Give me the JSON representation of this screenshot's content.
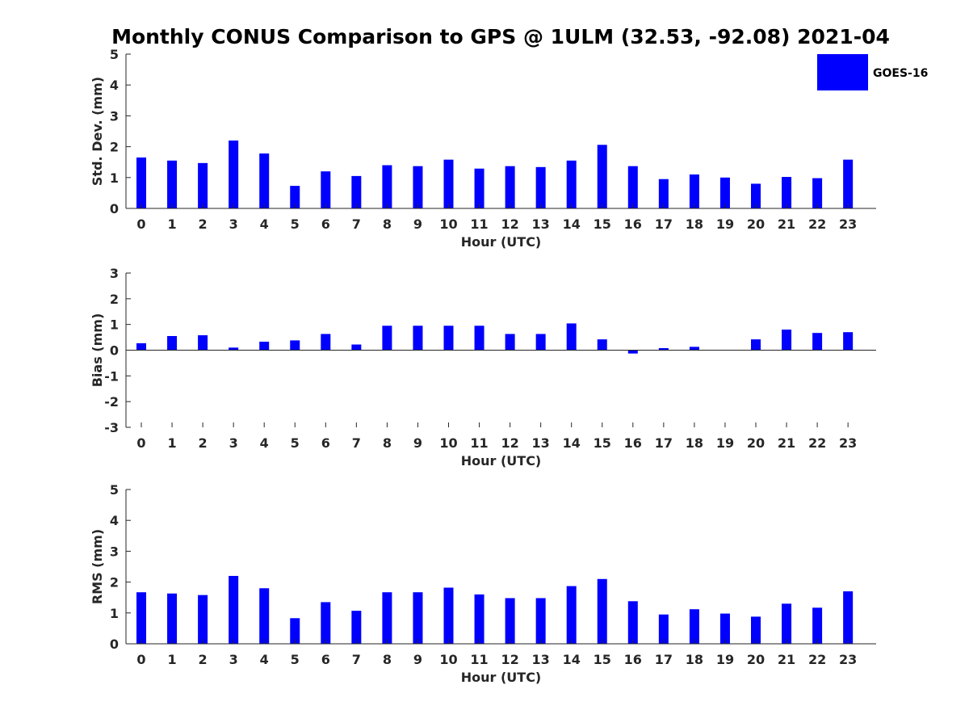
{
  "title": "Monthly CONUS Comparison to GPS @ 1ULM (32.53, -92.08) 2021-04",
  "legend": {
    "label": "GOES-16",
    "color": "#0000ff"
  },
  "chart_data": [
    {
      "type": "bar",
      "title": "",
      "xlabel": "Hour (UTC)",
      "ylabel": "Std. Dev. (mm)",
      "ylim": [
        0,
        5
      ],
      "yticks": [
        "0",
        "1",
        "2",
        "3",
        "4",
        "5"
      ],
      "categories": [
        "0",
        "1",
        "2",
        "3",
        "4",
        "5",
        "6",
        "7",
        "8",
        "9",
        "10",
        "11",
        "12",
        "13",
        "14",
        "15",
        "16",
        "17",
        "18",
        "19",
        "20",
        "21",
        "22",
        "23"
      ],
      "series": [
        {
          "name": "GOES-16",
          "values": [
            1.65,
            1.55,
            1.47,
            2.2,
            1.78,
            0.73,
            1.2,
            1.05,
            1.4,
            1.37,
            1.58,
            1.29,
            1.37,
            1.34,
            1.55,
            2.06,
            1.37,
            0.95,
            1.1,
            1.0,
            0.8,
            1.02,
            0.98,
            1.58
          ]
        }
      ],
      "grid": false,
      "legend": "top-right"
    },
    {
      "type": "bar",
      "title": "",
      "xlabel": "Hour (UTC)",
      "ylabel": "Bias (mm)",
      "ylim": [
        -3,
        3
      ],
      "yticks": [
        "-3",
        "-2",
        "-1",
        "0",
        "1",
        "2",
        "3"
      ],
      "categories": [
        "0",
        "1",
        "2",
        "3",
        "4",
        "5",
        "6",
        "7",
        "8",
        "9",
        "10",
        "11",
        "12",
        "13",
        "14",
        "15",
        "16",
        "17",
        "18",
        "19",
        "20",
        "21",
        "22",
        "23"
      ],
      "series": [
        {
          "name": "GOES-16",
          "values": [
            0.27,
            0.55,
            0.58,
            0.1,
            0.33,
            0.38,
            0.63,
            0.22,
            0.95,
            0.95,
            0.95,
            0.95,
            0.63,
            0.63,
            1.04,
            0.42,
            -0.13,
            0.08,
            0.13,
            0.0,
            0.42,
            0.8,
            0.67,
            0.7
          ]
        }
      ],
      "grid": false
    },
    {
      "type": "bar",
      "title": "",
      "xlabel": "Hour (UTC)",
      "ylabel": "RMS (mm)",
      "ylim": [
        0,
        5
      ],
      "yticks": [
        "0",
        "1",
        "2",
        "3",
        "4",
        "5"
      ],
      "categories": [
        "0",
        "1",
        "2",
        "3",
        "4",
        "5",
        "6",
        "7",
        "8",
        "9",
        "10",
        "11",
        "12",
        "13",
        "14",
        "15",
        "16",
        "17",
        "18",
        "19",
        "20",
        "21",
        "22",
        "23"
      ],
      "series": [
        {
          "name": "GOES-16",
          "values": [
            1.67,
            1.63,
            1.58,
            2.2,
            1.8,
            0.83,
            1.35,
            1.07,
            1.67,
            1.67,
            1.82,
            1.6,
            1.48,
            1.48,
            1.87,
            2.1,
            1.38,
            0.95,
            1.12,
            0.98,
            0.88,
            1.3,
            1.17,
            1.7
          ]
        }
      ],
      "grid": false
    }
  ]
}
